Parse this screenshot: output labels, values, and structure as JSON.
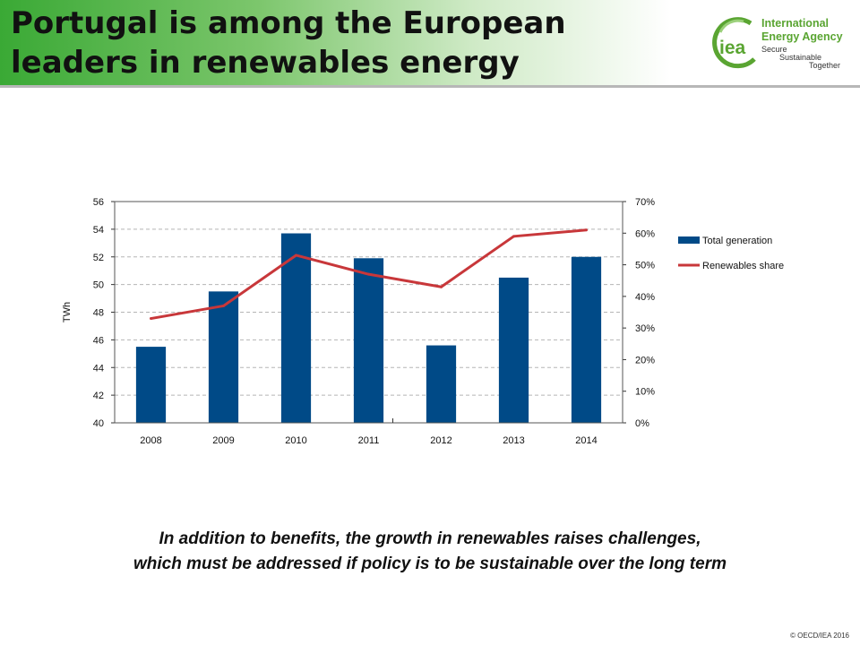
{
  "slide": {
    "title": "Portugal is among the European leaders in renewables energy",
    "caption_line1": "In addition to benefits, the growth in renewables raises challenges,",
    "caption_line2": "which must be addressed if policy is to be sustainable over the long term",
    "copyright": "© OECD/IEA 2016"
  },
  "logo": {
    "mark": "iea",
    "name_line1": "International",
    "name_line2": "Energy Agency",
    "tag1": "Secure",
    "tag2": "Sustainable",
    "tag3": "Together",
    "color": "#5aa532"
  },
  "chart_data": {
    "type": "bar",
    "categories": [
      "2008",
      "2009",
      "2010",
      "2011",
      "2012",
      "2013",
      "2014"
    ],
    "series": [
      {
        "name": "Total generation",
        "type": "bar",
        "axis": "left",
        "color": "#004a87",
        "values": [
          45.5,
          49.5,
          53.7,
          51.9,
          45.6,
          50.5,
          52.0
        ]
      },
      {
        "name": "Renewables share",
        "type": "line",
        "axis": "right",
        "color": "#c8373a",
        "values": [
          0.33,
          0.37,
          0.53,
          0.47,
          0.43,
          0.59,
          0.61
        ]
      }
    ],
    "ylabel": "TWh",
    "ylim": [
      40,
      56
    ],
    "yticks": [
      "40",
      "42",
      "44",
      "46",
      "48",
      "50",
      "52",
      "54",
      "56"
    ],
    "y2lim": [
      0,
      0.7
    ],
    "y2ticks": [
      "0%",
      "10%",
      "20%",
      "30%",
      "40%",
      "50%",
      "60%",
      "70%"
    ],
    "grid": true,
    "legend": "right"
  }
}
